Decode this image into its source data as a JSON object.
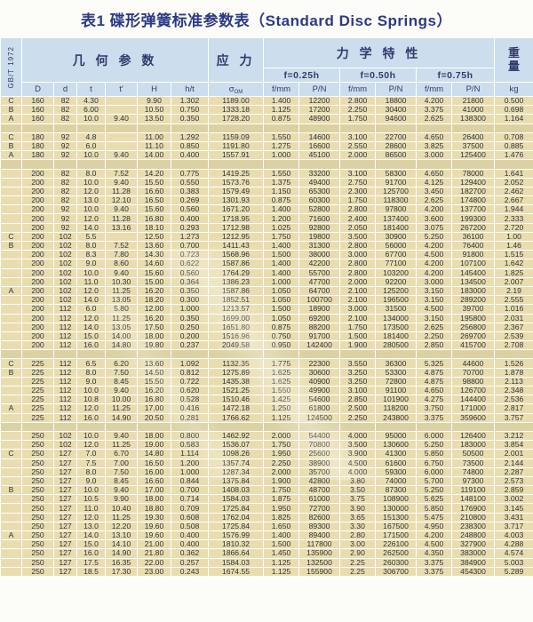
{
  "title": "表1 碟形弹簧标准参数表（Standard Disc Springs）",
  "standard_label": "GB/T 1972",
  "colors": {
    "title": "#2c3a86",
    "header_bg": "#ccdded",
    "row_bg": "#e9ddb0",
    "separator_bg": "#dcd1a2"
  },
  "table": {
    "header": {
      "geometry": "几 何 参 数",
      "stress": "应 力",
      "mechanical": "力 学 特 性",
      "weight_top": "重",
      "weight_bottom": "量",
      "load_levels": [
        "f=0.25h",
        "f=0.50h",
        "f=0.75h"
      ],
      "sigma_symbol": "σ",
      "sigma_sub": "OM",
      "columns": [
        "D",
        "d",
        "t",
        "t′",
        "H",
        "h/t",
        "f/mm",
        "P/N",
        "f/mm",
        "P/N",
        "f/mm",
        "P/N",
        "kg"
      ]
    },
    "groups": [
      {
        "rows": [
          [
            "C",
            "160",
            "82",
            "4.30",
            "",
            "9.90",
            "1.302",
            "1189.00",
            "1.400",
            "12200",
            "2.800",
            "18800",
            "4.200",
            "21800",
            "0.500"
          ],
          [
            "B",
            "160",
            "82",
            "6.00",
            "",
            "10.50",
            "0.750",
            "1333.18",
            "1.125",
            "17200",
            "2.250",
            "30400",
            "3.375",
            "41000",
            "0.698"
          ],
          [
            "A",
            "160",
            "82",
            "10.0",
            "9.40",
            "13.50",
            "0.350",
            "1728.20",
            "0.875",
            "48900",
            "1.750",
            "94600",
            "2.625",
            "138300",
            "1.164"
          ]
        ]
      },
      {
        "rows": [
          [
            "C",
            "180",
            "92",
            "4.8",
            "",
            "11.00",
            "1.292",
            "1159.09",
            "1.550",
            "14600",
            "3.100",
            "22700",
            "4.650",
            "26400",
            "0.708"
          ],
          [
            "B",
            "180",
            "92",
            "6.0",
            "",
            "11.10",
            "0.850",
            "1191.80",
            "1.275",
            "16600",
            "2.550",
            "28600",
            "3.825",
            "37500",
            "0.885"
          ],
          [
            "A",
            "180",
            "92",
            "10.0",
            "9.40",
            "14.00",
            "0.400",
            "1557.91",
            "1.000",
            "45100",
            "2.000",
            "86500",
            "3.000",
            "125400",
            "1.476"
          ]
        ]
      },
      {
        "rows": [
          [
            "",
            "200",
            "82",
            "8.0",
            "7.52",
            "14.20",
            "0.775",
            "1419.25",
            "1.550",
            "33200",
            "3.100",
            "58300",
            "4.650",
            "78000",
            "1.641"
          ],
          [
            "",
            "200",
            "82",
            "10.0",
            "9.40",
            "15.50",
            "0.550",
            "1573.76",
            "1.375",
            "49400",
            "2.750",
            "91700",
            "4.125",
            "129400",
            "2.052"
          ],
          [
            "",
            "200",
            "82",
            "12.0",
            "11.28",
            "16.60",
            "0.383",
            "1579.49",
            "1.150",
            "65300",
            "2.300",
            "125700",
            "3.450",
            "182700",
            "2.462"
          ],
          [
            "",
            "200",
            "82",
            "13.0",
            "12.10",
            "16.50",
            "0.269",
            "1301.93",
            "0.875",
            "60300",
            "1.750",
            "118300",
            "2.625",
            "174800",
            "2.667"
          ],
          [
            "",
            "200",
            "92",
            "10.0",
            "9.40",
            "15.60",
            "0.560",
            "1671.20",
            "1.400",
            "52800",
            "2.800",
            "97800",
            "4.200",
            "137700",
            "1.944"
          ],
          [
            "",
            "200",
            "92",
            "12.0",
            "11.28",
            "16.80",
            "0.400",
            "1718.95",
            "1.200",
            "71600",
            "2.400",
            "137400",
            "3.600",
            "199300",
            "2.333"
          ],
          [
            "",
            "200",
            "92",
            "14.0",
            "13.16",
            "18.10",
            "0.293",
            "1712.98",
            "1.025",
            "92800",
            "2.050",
            "181400",
            "3.075",
            "267200",
            "2.720"
          ],
          [
            "C",
            "200",
            "102",
            "5.5",
            "",
            "12.50",
            "1.273",
            "1212.95",
            "1.750",
            "19800",
            "3.500",
            "30900",
            "5.250",
            "36100",
            "1.00"
          ],
          [
            "B",
            "200",
            "102",
            "8.0",
            "7.52",
            "13.60",
            "0.700",
            "1411.43",
            "1.400",
            "31300",
            "2.800",
            "56000",
            "4.200",
            "76400",
            "1.46"
          ],
          [
            "",
            "200",
            "102",
            "8.3",
            "7.80",
            "14.30",
            "0.723",
            "1568.96",
            "1.500",
            "38000",
            "3.000",
            "67700",
            "4.500",
            "91800",
            "1.515"
          ],
          [
            "",
            "200",
            "102",
            "9.0",
            "8.60",
            "14.60",
            "0.622",
            "1587.86",
            "1.400",
            "42200",
            "2.800",
            "77100",
            "4.200",
            "107100",
            "1.642"
          ],
          [
            "",
            "200",
            "102",
            "10.0",
            "9.40",
            "15.60",
            "0.560",
            "1764.29",
            "1.400",
            "55700",
            "2.800",
            "103200",
            "4.200",
            "145400",
            "1.825"
          ],
          [
            "",
            "200",
            "102",
            "11.0",
            "10.30",
            "15.00",
            "0.364",
            "1386.23",
            "1.000",
            "47700",
            "2.000",
            "92200",
            "3.000",
            "134500",
            "2.007"
          ],
          [
            "A",
            "200",
            "102",
            "12.0",
            "11.25",
            "16.20",
            "0.350",
            "1587.86",
            "1.050",
            "64700",
            "2.100",
            "125200",
            "3.150",
            "183000",
            "2.19"
          ],
          [
            "",
            "200",
            "102",
            "14.0",
            "13.05",
            "18.20",
            "0.300",
            "1852.51",
            "1.050",
            "100700",
            "2.100",
            "196500",
            "3.150",
            "289200",
            "2.555"
          ],
          [
            "",
            "200",
            "112",
            "6.0",
            "5.80",
            "12.00",
            "1.000",
            "1213.57",
            "1.500",
            "18900",
            "3.000",
            "31500",
            "4.500",
            "39700",
            "1.016"
          ],
          [
            "",
            "200",
            "112",
            "12.0",
            "11.25",
            "16.20",
            "0.350",
            "1699.00",
            "1.050",
            "69200",
            "2.100",
            "134000",
            "3.150",
            "195800",
            "2.031"
          ],
          [
            "",
            "200",
            "112",
            "14.0",
            "13.05",
            "17.50",
            "0.250",
            "1651.80",
            "0.875",
            "88200",
            "1.750",
            "173500",
            "2.625",
            "256800",
            "2.367"
          ],
          [
            "",
            "200",
            "112",
            "15.0",
            "14.00",
            "18.00",
            "0.200",
            "1516.96",
            "0.750",
            "91700",
            "1.500",
            "181400",
            "2.250",
            "269700",
            "2.539"
          ],
          [
            "",
            "200",
            "112",
            "16.0",
            "14.80",
            "19.80",
            "0.237",
            "2049.58",
            "0.950",
            "142400",
            "1.900",
            "280500",
            "2.850",
            "415700",
            "2.708"
          ]
        ]
      },
      {
        "rows": [
          [
            "C",
            "225",
            "112",
            "6.5",
            "6.20",
            "13.60",
            "1.092",
            "1132.35",
            "1.775",
            "22300",
            "3.550",
            "36300",
            "5.325",
            "44600",
            "1.526"
          ],
          [
            "B",
            "225",
            "112",
            "8.0",
            "7.50",
            "14.50",
            "0.812",
            "1275.89",
            "1.625",
            "30600",
            "3.250",
            "53300",
            "4.875",
            "70700",
            "1.878"
          ],
          [
            "",
            "225",
            "112",
            "9.0",
            "8.45",
            "15.50",
            "0.722",
            "1435.38",
            "1.625",
            "40900",
            "3.250",
            "72800",
            "4.875",
            "98800",
            "2.113"
          ],
          [
            "",
            "225",
            "112",
            "10.0",
            "9.40",
            "16.20",
            "0.620",
            "1521.25",
            "1.550",
            "49900",
            "3.100",
            "91100",
            "4.650",
            "126700",
            "2.348"
          ],
          [
            "",
            "225",
            "112",
            "10.8",
            "10.00",
            "16.80",
            "0.528",
            "1510.46",
            "1.425",
            "54600",
            "2.850",
            "101900",
            "4.275",
            "144400",
            "2.536"
          ],
          [
            "A",
            "225",
            "112",
            "12.0",
            "11.25",
            "17.00",
            "0.416",
            "1472.18",
            "1.250",
            "61800",
            "2.500",
            "118200",
            "3.750",
            "171000",
            "2.817"
          ],
          [
            "",
            "225",
            "112",
            "16.0",
            "14.90",
            "20.50",
            "0.281",
            "1766.62",
            "1.125",
            "124500",
            "2.250",
            "243800",
            "3.375",
            "359600",
            "3.757"
          ]
        ]
      },
      {
        "rows": [
          [
            "",
            "250",
            "102",
            "10.0",
            "9.40",
            "18.00",
            "0.800",
            "1462.92",
            "2.000",
            "54400",
            "4.000",
            "95000",
            "6.000",
            "126400",
            "3.212"
          ],
          [
            "",
            "250",
            "102",
            "12.0",
            "11.25",
            "19.00",
            "0.583",
            "1536.07",
            "1.750",
            "70800",
            "3.500",
            "130600",
            "5.250",
            "183000",
            "3.854"
          ],
          [
            "C",
            "250",
            "127",
            "7.0",
            "6.70",
            "14.80",
            "1.114",
            "1098.26",
            "1.950",
            "25600",
            "3.900",
            "41300",
            "5.850",
            "50500",
            "2.001"
          ],
          [
            "",
            "250",
            "127",
            "7.5",
            "7.00",
            "16.50",
            "1.200",
            "1357.74",
            "2.250",
            "38900",
            "4.500",
            "61600",
            "6.750",
            "73500",
            "2.144"
          ],
          [
            "",
            "250",
            "127",
            "8.0",
            "7.50",
            "16.00",
            "1.000",
            "1287.34",
            "2.000",
            "35700",
            "4.000",
            "59300",
            "6.000",
            "74800",
            "2.287"
          ],
          [
            "",
            "250",
            "127",
            "9.0",
            "8.45",
            "16.60",
            "0.844",
            "1375.84",
            "1.900",
            "42800",
            "3.80",
            "74000",
            "5.700",
            "97300",
            "2.573"
          ],
          [
            "B",
            "250",
            "127",
            "10.0",
            "9.40",
            "17.00",
            "0.700",
            "1408.03",
            "1.750",
            "48700",
            "3.50",
            "87300",
            "5.250",
            "119100",
            "2.859"
          ],
          [
            "",
            "250",
            "127",
            "10.5",
            "9.90",
            "18.00",
            "0.714",
            "1584.03",
            "1.875",
            "61000",
            "3.75",
            "108900",
            "5.625",
            "148100",
            "3.002"
          ],
          [
            "",
            "250",
            "127",
            "11.0",
            "10.40",
            "18.80",
            "0.709",
            "1725.84",
            "1.950",
            "72700",
            "3.90",
            "130000",
            "5.850",
            "176900",
            "3.145"
          ],
          [
            "",
            "250",
            "127",
            "12.0",
            "11.25",
            "19.30",
            "0.608",
            "1762.04",
            "1.825",
            "82600",
            "3.65",
            "151300",
            "5.475",
            "210800",
            "3.431"
          ],
          [
            "",
            "250",
            "127",
            "13.0",
            "12.20",
            "19.60",
            "0.508",
            "1725.84",
            "1.650",
            "89300",
            "3.30",
            "167500",
            "4.950",
            "238300",
            "3.717"
          ],
          [
            "A",
            "250",
            "127",
            "14.0",
            "13.10",
            "19.60",
            "0.400",
            "1576.99",
            "1.400",
            "89400",
            "2.80",
            "171500",
            "4.200",
            "248800",
            "4.003"
          ],
          [
            "",
            "250",
            "127",
            "15.0",
            "14.10",
            "21.00",
            "0.400",
            "1810.32",
            "1.500",
            "117800",
            "3.00",
            "226100",
            "4.500",
            "327900",
            "4.288"
          ],
          [
            "",
            "250",
            "127",
            "16.0",
            "14.90",
            "21.80",
            "0.362",
            "1866.64",
            "1.450",
            "135900",
            "2.90",
            "262500",
            "4.350",
            "383000",
            "4.574"
          ],
          [
            "",
            "250",
            "127",
            "17.5",
            "16.35",
            "22.00",
            "0.257",
            "1584.03",
            "1.125",
            "132500",
            "2.25",
            "260300",
            "3.375",
            "384900",
            "5.003"
          ],
          [
            "",
            "250",
            "127",
            "18.5",
            "17.30",
            "23.00",
            "0.243",
            "1674.55",
            "1.125",
            "155900",
            "2.25",
            "306700",
            "3.375",
            "454300",
            "5.289"
          ]
        ]
      }
    ]
  }
}
